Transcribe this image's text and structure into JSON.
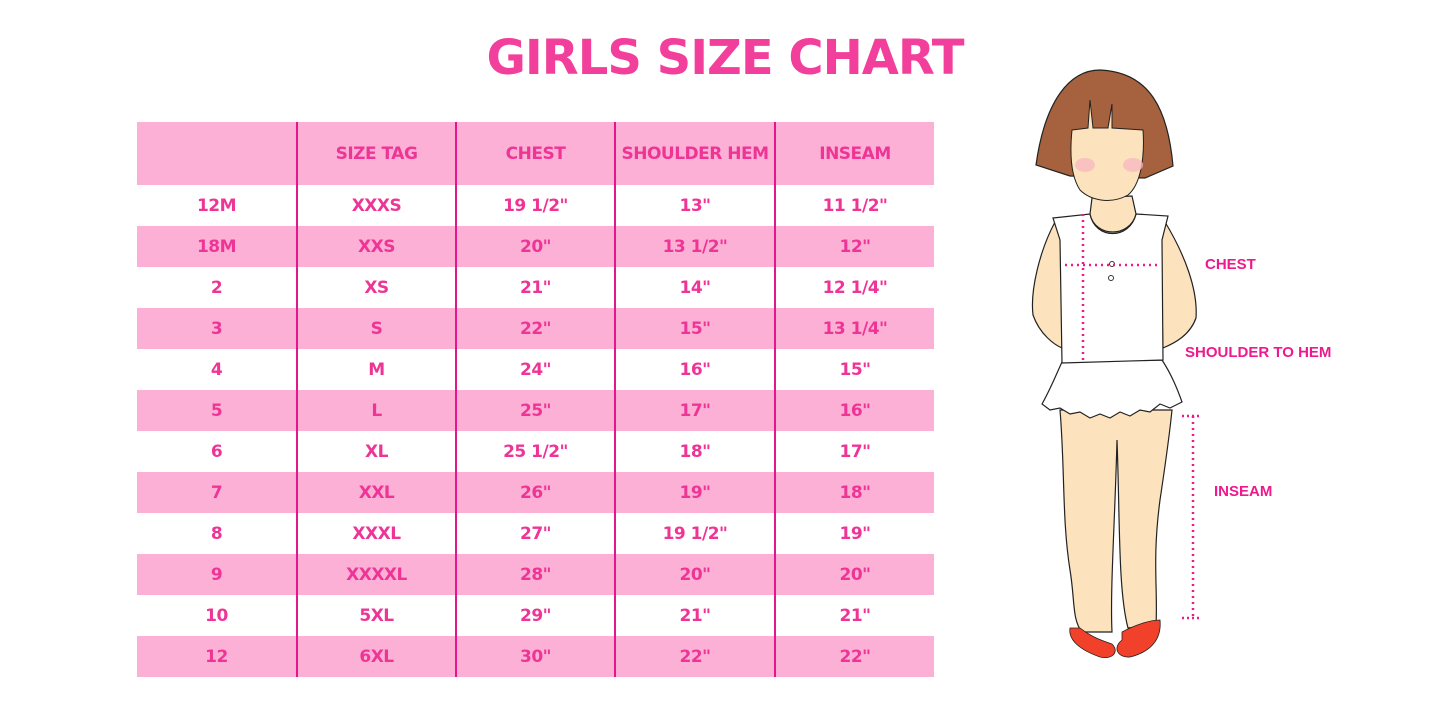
{
  "title": "GIRLS SIZE CHART",
  "table": {
    "headers": [
      "",
      "SIZE TAG",
      "CHEST",
      "SHOULDER HEM",
      "INSEAM"
    ],
    "rows": [
      [
        "12M",
        "XXXS",
        "19 1/2\"",
        "13\"",
        "11 1/2\""
      ],
      [
        "18M",
        "XXS",
        "20\"",
        "13 1/2\"",
        "12\""
      ],
      [
        "2",
        "XS",
        "21\"",
        "14\"",
        "12 1/4\""
      ],
      [
        "3",
        "S",
        "22\"",
        "15\"",
        "13 1/4\""
      ],
      [
        "4",
        "M",
        "24\"",
        "16\"",
        "15\""
      ],
      [
        "5",
        "L",
        "25\"",
        "17\"",
        "16\""
      ],
      [
        "6",
        "XL",
        "25 1/2\"",
        "18\"",
        "17\""
      ],
      [
        "7",
        "XXL",
        "26\"",
        "19\"",
        "18\""
      ],
      [
        "8",
        "XXXL",
        "27\"",
        "19 1/2\"",
        "19\""
      ],
      [
        "9",
        "XXXXL",
        "28\"",
        "20\"",
        "20\""
      ],
      [
        "10",
        "5XL",
        "29\"",
        "21\"",
        "21\""
      ],
      [
        "12",
        "6XL",
        "30\"",
        "22\"",
        "22\""
      ]
    ]
  },
  "illustration": {
    "labels": {
      "chest": "CHEST",
      "shoulder_to_hem": "SHOULDER TO HEM",
      "inseam": "INSEAM"
    }
  },
  "colors": {
    "accent": "#f23f9b",
    "row_pink": "#fdb0d5",
    "divider": "#e3168c"
  }
}
